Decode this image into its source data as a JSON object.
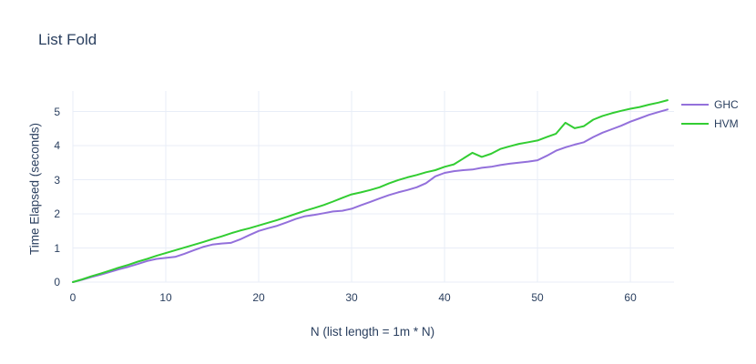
{
  "chart_data": {
    "type": "line",
    "title": "List Fold",
    "xlabel": "N (list length = 1m * N)",
    "ylabel": "Time Elapsed (seconds)",
    "x_ticks": [
      0,
      10,
      20,
      30,
      40,
      50,
      60
    ],
    "y_ticks": [
      0,
      1,
      2,
      3,
      4,
      5
    ],
    "xlim": [
      0,
      64.5
    ],
    "ylim": [
      0,
      5.6
    ],
    "grid": true,
    "legend_position": "right",
    "background_color": "#ffffff",
    "grid_color": "#e8edf7",
    "text_color": "#2a3f5f",
    "x": [
      0,
      1,
      2,
      3,
      4,
      5,
      6,
      7,
      8,
      9,
      10,
      11,
      12,
      13,
      14,
      15,
      16,
      17,
      18,
      19,
      20,
      21,
      22,
      23,
      24,
      25,
      26,
      27,
      28,
      29,
      30,
      31,
      32,
      33,
      34,
      35,
      36,
      37,
      38,
      39,
      40,
      41,
      42,
      43,
      44,
      45,
      46,
      47,
      48,
      49,
      50,
      51,
      52,
      53,
      54,
      55,
      56,
      57,
      58,
      59,
      60,
      61,
      62,
      63,
      64
    ],
    "series": [
      {
        "name": "GHC",
        "color": "#9370db",
        "values": [
          0.0,
          0.07,
          0.15,
          0.22,
          0.3,
          0.38,
          0.45,
          0.53,
          0.62,
          0.68,
          0.71,
          0.74,
          0.83,
          0.93,
          1.03,
          1.1,
          1.13,
          1.15,
          1.25,
          1.38,
          1.5,
          1.58,
          1.65,
          1.75,
          1.85,
          1.93,
          1.97,
          2.02,
          2.07,
          2.09,
          2.15,
          2.25,
          2.35,
          2.45,
          2.55,
          2.63,
          2.7,
          2.78,
          2.9,
          3.1,
          3.2,
          3.25,
          3.28,
          3.3,
          3.35,
          3.38,
          3.43,
          3.47,
          3.5,
          3.53,
          3.57,
          3.7,
          3.85,
          3.95,
          4.03,
          4.1,
          4.25,
          4.38,
          4.48,
          4.58,
          4.7,
          4.8,
          4.9,
          4.98,
          5.06
        ]
      },
      {
        "name": "HVM",
        "color": "#32cd32",
        "values": [
          0.0,
          0.08,
          0.17,
          0.25,
          0.34,
          0.43,
          0.51,
          0.6,
          0.68,
          0.77,
          0.85,
          0.93,
          1.01,
          1.09,
          1.17,
          1.26,
          1.34,
          1.43,
          1.51,
          1.58,
          1.66,
          1.74,
          1.82,
          1.91,
          2.0,
          2.09,
          2.17,
          2.26,
          2.36,
          2.47,
          2.57,
          2.63,
          2.7,
          2.78,
          2.89,
          2.99,
          3.07,
          3.14,
          3.22,
          3.28,
          3.38,
          3.45,
          3.62,
          3.79,
          3.67,
          3.76,
          3.9,
          3.98,
          4.05,
          4.1,
          4.15,
          4.25,
          4.35,
          4.67,
          4.51,
          4.57,
          4.76,
          4.87,
          4.95,
          5.02,
          5.08,
          5.13,
          5.2,
          5.26,
          5.33
        ]
      }
    ]
  }
}
